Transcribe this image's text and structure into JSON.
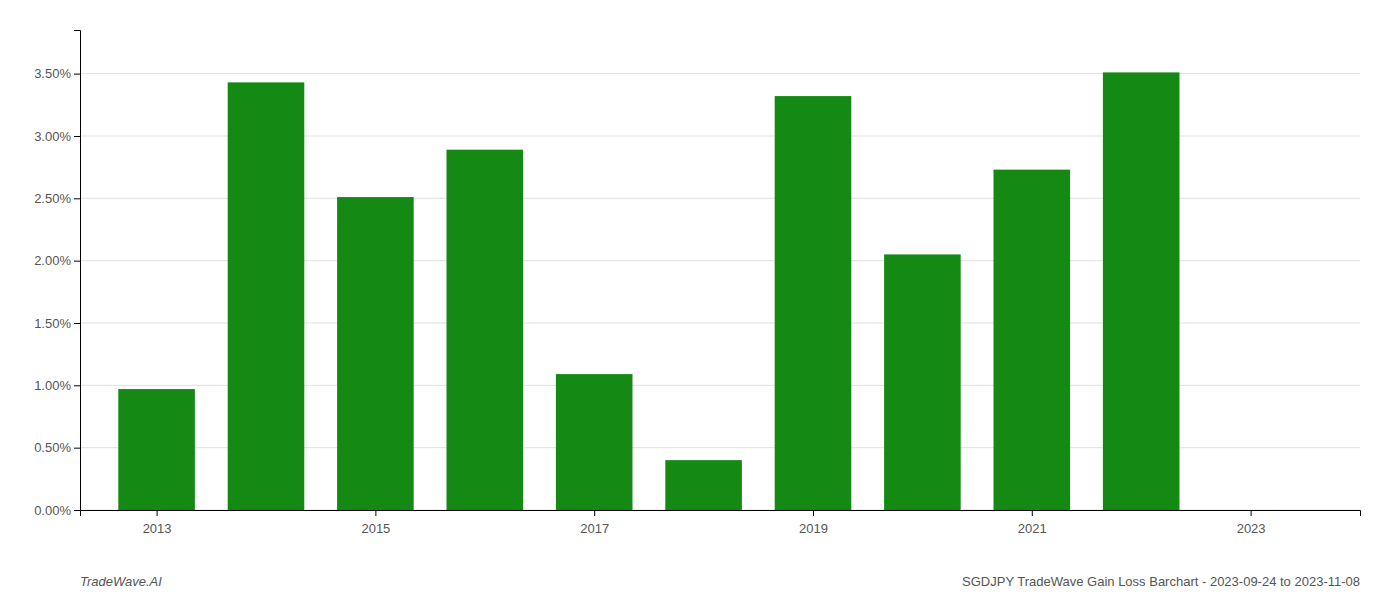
{
  "chart_data": {
    "type": "bar",
    "x": [
      2013,
      2014,
      2015,
      2016,
      2017,
      2018,
      2019,
      2020,
      2021,
      2022
    ],
    "values": [
      0.0097,
      0.0343,
      0.0251,
      0.0289,
      0.0109,
      0.004,
      0.0332,
      0.0205,
      0.0273,
      0.0351
    ],
    "color": "#148A14",
    "xlim": [
      2012.3,
      2024.0
    ],
    "xticks": [
      2013,
      2015,
      2017,
      2019,
      2021,
      2023
    ],
    "ylim": [
      0,
      0.0385
    ],
    "yticks": [
      {
        "value": 0.0,
        "label": "0.00%"
      },
      {
        "value": 0.005,
        "label": "0.50%"
      },
      {
        "value": 0.01,
        "label": "1.00%"
      },
      {
        "value": 0.015,
        "label": "1.50%"
      },
      {
        "value": 0.02,
        "label": "2.00%"
      },
      {
        "value": 0.025,
        "label": "2.50%"
      },
      {
        "value": 0.03,
        "label": "3.00%"
      },
      {
        "value": 0.035,
        "label": "3.50%"
      }
    ],
    "grid": true,
    "annotations": [
      "TradeWave.AI",
      "SGDJPY TradeWave Gain Loss Barchart - 2023-09-24 to 2023-11-08"
    ]
  }
}
